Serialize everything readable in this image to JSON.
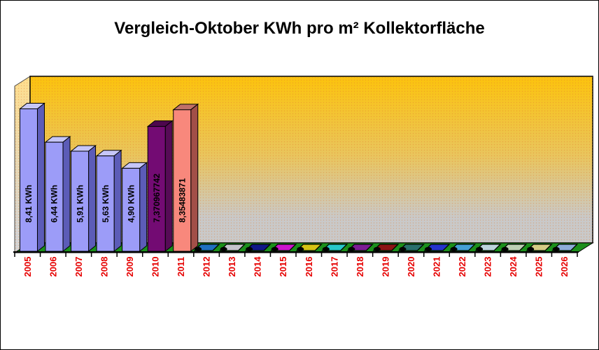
{
  "window": {
    "background": "#FFFFFF",
    "border_color": "#000000"
  },
  "title": "Vergleich-Oktober KWh pro m² Kollektorfläche",
  "chart_data": {
    "type": "bar",
    "projection": "3d",
    "title": "Vergleich-Oktober KWh pro m² Kollektorfläche",
    "xlabel": "",
    "ylabel": "",
    "value_unit": "KWh",
    "ylim": [
      0,
      10.4
    ],
    "gridlines": false,
    "legend": "none",
    "value_axis_labels_visible": false,
    "categories": [
      "2005",
      "2006",
      "2007",
      "2008",
      "2009",
      "2010",
      "2011",
      "2012",
      "2013",
      "2014",
      "2015",
      "2016",
      "2017",
      "2018",
      "2019",
      "2020",
      "2021",
      "2022",
      "2023",
      "2024",
      "2025",
      "2026"
    ],
    "values": [
      8.41,
      6.44,
      5.91,
      5.63,
      4.9,
      7.370967742,
      8.35483871,
      0,
      0,
      0,
      0,
      0,
      0,
      0,
      0,
      0,
      0,
      0,
      0,
      0,
      0,
      0
    ],
    "bars": [
      {
        "year": "2005",
        "value": 8.41,
        "label": "8,41 KWh",
        "front": "#9C9CF8",
        "side": "#5C5CB8",
        "top": "#C6C6F8"
      },
      {
        "year": "2006",
        "value": 6.44,
        "label": "6,44 KWh",
        "front": "#9C9CF8",
        "side": "#5C5CB8",
        "top": "#C6C6F8"
      },
      {
        "year": "2007",
        "value": 5.91,
        "label": "5,91 KWh",
        "front": "#9C9CF8",
        "side": "#5C5CB8",
        "top": "#C6C6F8"
      },
      {
        "year": "2008",
        "value": 5.63,
        "label": "5,63 KWh",
        "front": "#9C9CF8",
        "side": "#5C5CB8",
        "top": "#C6C6F8"
      },
      {
        "year": "2009",
        "value": 4.9,
        "label": "4,90 KWh",
        "front": "#9C9CF8",
        "side": "#5C5CB8",
        "top": "#C6C6F8"
      },
      {
        "year": "2010",
        "value": 7.370967742,
        "label": "7,370967742",
        "front": "#730B73",
        "side": "#560B56",
        "top": "#4D074D"
      },
      {
        "year": "2011",
        "value": 8.35483871,
        "label": "8,35483871",
        "front": "#F8887C",
        "side": "#A24F48",
        "top": "#C07068"
      },
      {
        "year": "2012",
        "value": 0,
        "label": "",
        "front": "#2070C0"
      },
      {
        "year": "2013",
        "value": 0,
        "label": "",
        "front": "#C4C4CC"
      },
      {
        "year": "2014",
        "value": 0,
        "label": "",
        "front": "#101888"
      },
      {
        "year": "2015",
        "value": 0,
        "label": "",
        "front": "#CC14CC"
      },
      {
        "year": "2016",
        "value": 0,
        "label": "",
        "front": "#D4C414"
      },
      {
        "year": "2017",
        "value": 0,
        "label": "",
        "front": "#28C8C8"
      },
      {
        "year": "2018",
        "value": 0,
        "label": "",
        "front": "#7C1C94"
      },
      {
        "year": "2019",
        "value": 0,
        "label": "",
        "front": "#8C1414"
      },
      {
        "year": "2020",
        "value": 0,
        "label": "",
        "front": "#28706C"
      },
      {
        "year": "2021",
        "value": 0,
        "label": "",
        "front": "#2434CC"
      },
      {
        "year": "2022",
        "value": 0,
        "label": "",
        "front": "#44A0D4"
      },
      {
        "year": "2023",
        "value": 0,
        "label": "",
        "front": "#BCD4DC"
      },
      {
        "year": "2024",
        "value": 0,
        "label": "",
        "front": "#BCD0B4"
      },
      {
        "year": "2025",
        "value": 0,
        "label": "",
        "front": "#D4CC84"
      },
      {
        "year": "2026",
        "value": 0,
        "label": "",
        "front": "#8CACD8"
      }
    ],
    "colors": {
      "axis_label": "#E60000",
      "bar_value_label": "#000000",
      "floor": "#1B8F1B",
      "back_wall_gradient": [
        "#FCC30D",
        "#E9C55E",
        "#C9C9C9"
      ],
      "left_wall_gradient": [
        "#FFDF8E",
        "#D4D4D4"
      ],
      "wall_dot": "#E07828",
      "outline": "#000000"
    }
  }
}
